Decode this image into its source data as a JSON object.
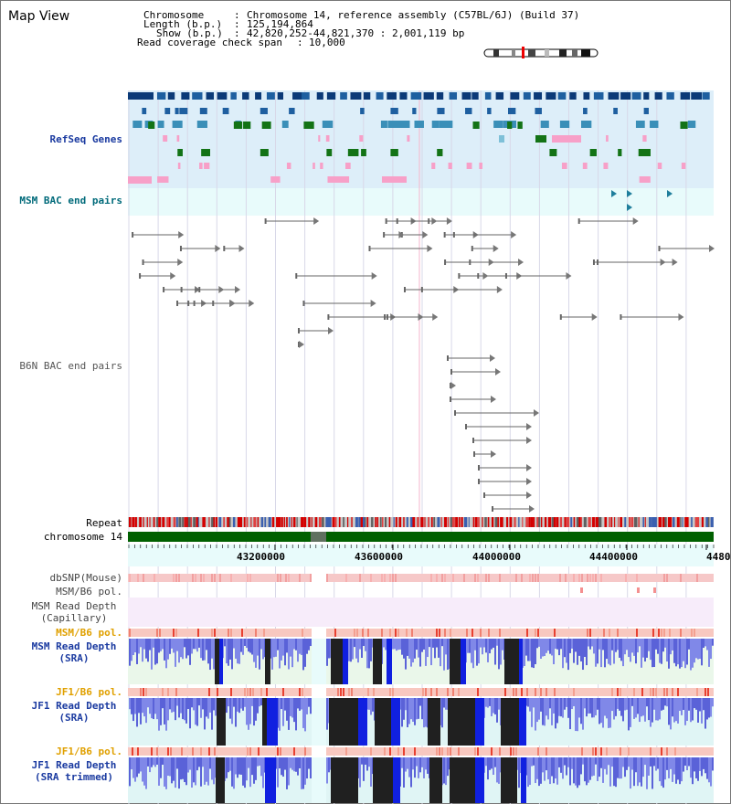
{
  "app": {
    "title": "Map View"
  },
  "header": {
    "chromosome_label": "Chromosome",
    "chromosome_value": "Chromosome 14, reference assembly (C57BL/6J) (Build 37)",
    "length_label": "Length (b.p.)",
    "length_value": "125,194,864",
    "show_label": "Show (b.p.)",
    "show_value": "42,820,252-44,821,370 : 2,001,119 bp",
    "coverage_label": "Read coverage check span",
    "coverage_value": "10,000"
  },
  "tracks": {
    "refseq_genes": "RefSeq Genes",
    "msm_bac_end_pairs": "MSM BAC end pairs",
    "b6n_bac_end_pairs": "B6N BAC end pairs",
    "repeat": "Repeat",
    "chromosome": "chromosome 14",
    "dbsnp_mouse": "dbSNP(Mouse)",
    "msm_b6_pol": "MSM/B6 pol.",
    "msm_read_depth_capillary": "MSM Read Depth\n(Capillary)",
    "msm_b6_pol_2": "MSM/B6 pol.",
    "msm_read_depth_sra": "MSM Read Depth\n(SRA)",
    "jf1_b6_pol": "JF1/B6 pol.",
    "jf1_read_depth_sra": "JF1 Read Depth\n(SRA)",
    "jf1_b6_pol_2": "JF1/B6 pol.",
    "jf1_read_depth_sra_trimmed": "JF1 Read Depth\n(SRA trimmed)"
  },
  "axis": {
    "ticks": [
      "43200000",
      "43600000",
      "44000000",
      "44400000",
      "4480"
    ]
  },
  "colors": {
    "refseq_bg": "#ddeef9",
    "msm_bac_bg": "#e8fbfb",
    "gene_dark_blue": "#0b3a78",
    "gene_mid_blue": "#3a7fb4",
    "gene_green": "#137316",
    "gene_pink": "#f7a0c8",
    "label_blue": "#1a3aa0",
    "label_teal": "#006a7a",
    "label_orange": "#e0a000",
    "chromosome_green": "#006000",
    "depth_blue": "#3343e0",
    "depth_black": "#202020"
  }
}
